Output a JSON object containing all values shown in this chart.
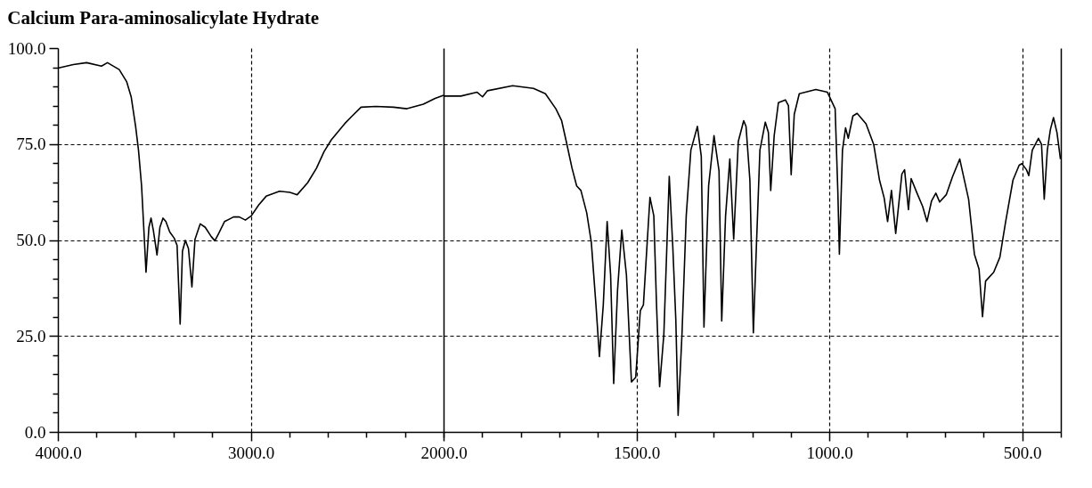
{
  "chart_data": [
    {
      "type": "line",
      "title": "Calcium Para-aminosalicylate Hydrate",
      "grid": true,
      "xlim": [
        4000,
        2000
      ],
      "xticks": [
        {
          "value": 4000,
          "label": "4000.0"
        },
        {
          "value": 3800,
          "label": null
        },
        {
          "value": 3600,
          "label": null
        },
        {
          "value": 3400,
          "label": null
        },
        {
          "value": 3200,
          "label": null
        },
        {
          "value": 3000,
          "label": "3000.0"
        },
        {
          "value": 2800,
          "label": null
        },
        {
          "value": 2600,
          "label": null
        },
        {
          "value": 2400,
          "label": null
        },
        {
          "value": 2200,
          "label": null
        },
        {
          "value": 2000,
          "label": "2000.0"
        }
      ],
      "ylim": [
        0,
        100
      ],
      "yticks": [
        {
          "value": 0,
          "label": "0.0"
        },
        {
          "value": 5,
          "label": null
        },
        {
          "value": 10,
          "label": null
        },
        {
          "value": 15,
          "label": null
        },
        {
          "value": 20,
          "label": null
        },
        {
          "value": 25,
          "label": "25.0"
        },
        {
          "value": 30,
          "label": null
        },
        {
          "value": 35,
          "label": null
        },
        {
          "value": 40,
          "label": null
        },
        {
          "value": 45,
          "label": null
        },
        {
          "value": 50,
          "label": "50.0"
        },
        {
          "value": 55,
          "label": null
        },
        {
          "value": 60,
          "label": null
        },
        {
          "value": 65,
          "label": null
        },
        {
          "value": 70,
          "label": null
        },
        {
          "value": 75,
          "label": "75.0"
        },
        {
          "value": 80,
          "label": null
        },
        {
          "value": 85,
          "label": null
        },
        {
          "value": 90,
          "label": null
        },
        {
          "value": 95,
          "label": null
        },
        {
          "value": 100,
          "label": "100.0"
        }
      ],
      "series": [
        {
          "color": "#000000",
          "x": [
            4000,
            3920,
            3851,
            3774,
            3743,
            3682,
            3643,
            3620,
            3597,
            3582,
            3566,
            3554,
            3543,
            3528,
            3517,
            3505,
            3486,
            3471,
            3455,
            3440,
            3420,
            3397,
            3382,
            3366,
            3354,
            3339,
            3323,
            3305,
            3289,
            3262,
            3236,
            3205,
            3186,
            3166,
            3136,
            3089,
            3059,
            3028,
            2997,
            2959,
            2920,
            2851,
            2797,
            2759,
            2705,
            2659,
            2620,
            2582,
            2513,
            2474,
            2428,
            2351,
            2259,
            2190,
            2105,
            2044,
            2000
          ],
          "values": [
            94.8,
            95.7,
            96.2,
            95.3,
            96.2,
            94.4,
            91.2,
            87.3,
            79.6,
            73.4,
            64.1,
            52.5,
            41.6,
            53.3,
            55.7,
            52.5,
            46.1,
            53.3,
            55.7,
            54.8,
            52.1,
            50.5,
            48.6,
            28.1,
            47.1,
            49.9,
            47.8,
            37.8,
            50.2,
            54.2,
            53.3,
            50.9,
            49.8,
            51.7,
            54.8,
            56.0,
            56.0,
            55.2,
            56.3,
            59.1,
            61.4,
            62.7,
            62.4,
            61.8,
            64.9,
            68.7,
            73.0,
            76.1,
            80.3,
            82.3,
            84.6,
            84.8,
            84.6,
            84.2,
            85.4,
            86.9,
            87.7
          ]
        }
      ]
    },
    {
      "type": "line",
      "grid": true,
      "tick_labels": "x",
      "xlim": [
        2000,
        400
      ],
      "xticks": [
        {
          "value": 2000,
          "label": null
        },
        {
          "value": 1900,
          "label": null
        },
        {
          "value": 1800,
          "label": null
        },
        {
          "value": 1700,
          "label": null
        },
        {
          "value": 1600,
          "label": null
        },
        {
          "value": 1500,
          "label": "1500.0"
        },
        {
          "value": 1400,
          "label": null
        },
        {
          "value": 1300,
          "label": null
        },
        {
          "value": 1200,
          "label": null
        },
        {
          "value": 1100,
          "label": null
        },
        {
          "value": 1000,
          "label": "1000.0"
        },
        {
          "value": 900,
          "label": null
        },
        {
          "value": 800,
          "label": null
        },
        {
          "value": 700,
          "label": null
        },
        {
          "value": 600,
          "label": null
        },
        {
          "value": 500,
          "label": "500.0"
        },
        {
          "value": 400,
          "label": null
        }
      ],
      "ylim": [
        0,
        100
      ],
      "yticks": [
        0,
        25,
        50,
        75,
        100
      ],
      "series": [
        {
          "color": "#000000",
          "x": [
            2000,
            1955,
            1913,
            1899,
            1886,
            1821,
            1767,
            1736,
            1709,
            1694,
            1682,
            1667,
            1655,
            1644,
            1629,
            1617,
            1605,
            1596,
            1586,
            1576,
            1567,
            1559,
            1549,
            1538,
            1526,
            1513,
            1502,
            1490,
            1482,
            1475,
            1465,
            1455,
            1448,
            1440,
            1429,
            1415,
            1406,
            1398,
            1392,
            1382,
            1371,
            1359,
            1342,
            1332,
            1325,
            1313,
            1299,
            1286,
            1279,
            1269,
            1258,
            1248,
            1236,
            1222,
            1216,
            1206,
            1197,
            1189,
            1180,
            1166,
            1158,
            1152,
            1143,
            1132,
            1114,
            1106,
            1099,
            1091,
            1078,
            1035,
            1005,
            985,
            978,
            974,
            966,
            958,
            951,
            939,
            928,
            905,
            885,
            870,
            858,
            849,
            839,
            828,
            812,
            805,
            795,
            788,
            774,
            758,
            747,
            735,
            724,
            714,
            697,
            681,
            662,
            639,
            624,
            612,
            603,
            595,
            574,
            558,
            543,
            524,
            508,
            501,
            489,
            483,
            474,
            458,
            450,
            443,
            435,
            427,
            419,
            410,
            401
          ],
          "values": [
            87.5,
            87.5,
            88.5,
            87.3,
            88.9,
            90.2,
            89.5,
            88.1,
            84.2,
            81.1,
            75.7,
            68.7,
            64.1,
            62.9,
            57.1,
            49.4,
            33.1,
            19.6,
            33.1,
            54.8,
            40.9,
            12.6,
            37.0,
            52.6,
            40.9,
            13.0,
            14.2,
            31.6,
            33.1,
            44.7,
            61.1,
            56.3,
            33.1,
            11.8,
            25.4,
            66.6,
            48.6,
            29.3,
            4.3,
            25.4,
            56.3,
            73.4,
            79.6,
            71.8,
            27.3,
            64.1,
            77.2,
            68.0,
            28.9,
            56.3,
            71.1,
            50.2,
            75.7,
            81.1,
            79.6,
            65.6,
            25.8,
            48.6,
            73.4,
            80.7,
            78.0,
            62.9,
            77.2,
            85.8,
            86.5,
            85.0,
            67.0,
            82.7,
            88.1,
            89.2,
            88.5,
            84.2,
            62.5,
            46.3,
            73.4,
            79.2,
            76.5,
            82.3,
            83.0,
            80.3,
            74.9,
            65.6,
            61.0,
            54.8,
            62.9,
            51.7,
            67.2,
            68.3,
            57.9,
            66.0,
            62.5,
            58.7,
            54.8,
            60.2,
            62.2,
            59.9,
            61.8,
            66.4,
            71.1,
            60.6,
            46.3,
            42.4,
            30.0,
            39.3,
            41.6,
            45.5,
            54.8,
            65.6,
            69.5,
            69.9,
            68.3,
            66.8,
            73.4,
            76.5,
            74.9,
            60.6,
            73.4,
            78.8,
            81.9,
            78.0,
            71.1
          ]
        }
      ]
    }
  ]
}
